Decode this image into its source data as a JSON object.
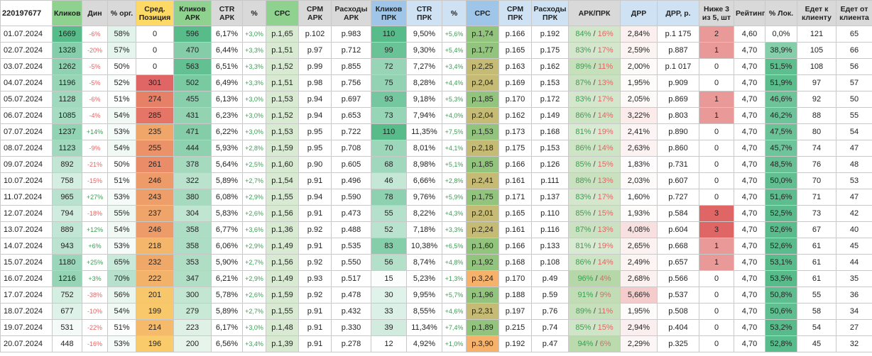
{
  "sheet_id": "220197677",
  "headers": [
    "Кликов",
    "Дин",
    "% орг.",
    "Сред. Позиция",
    "Кликов АРК",
    "CTR АРК",
    "%",
    "CPC",
    "CPM АРК",
    "Расходы АРК",
    "Кликов ПРК",
    "CTR ПРК",
    "%",
    "CPC",
    "CPM ПРК",
    "Расходы ПРК",
    "АРК/ПРК",
    "ДРР",
    "ДРР, р.",
    "Ниже 3 из 5, шт",
    "Рейтинг",
    "% Лок.",
    "Едет к клиенту",
    "Едет от клиента"
  ],
  "rows": [
    {
      "date": "01.07.2024",
      "clicks": "1669",
      "dyn": "-6%",
      "org": "58%",
      "pos": "0",
      "ark_clicks": "596",
      "ark_ctr": "6,17%",
      "ark_pct": "+3,0%",
      "ark_cpc": "р.1,65",
      "ark_cpm": "р.102",
      "ark_cost": "р.983",
      "prk_clicks": "110",
      "prk_ctr": "9,50%",
      "prk_pct": "+5,6%",
      "prk_cpc": "р.1,74",
      "prk_cpm": "р.166",
      "prk_cost": "р.192",
      "ark_share": "84%",
      "prk_share": "16%",
      "drr": "2,84%",
      "drr_r": "р.1 175",
      "low": "2",
      "rating": "4,60",
      "lok": "0,0%",
      "to_client": "121",
      "from_client": "65"
    },
    {
      "date": "02.07.2024",
      "clicks": "1328",
      "dyn": "-20%",
      "org": "57%",
      "pos": "0",
      "ark_clicks": "470",
      "ark_ctr": "6,44%",
      "ark_pct": "+3,3%",
      "ark_cpc": "р.1,51",
      "ark_cpm": "р.97",
      "ark_cost": "р.712",
      "prk_clicks": "99",
      "prk_ctr": "9,30%",
      "prk_pct": "+5,4%",
      "prk_cpc": "р.1,77",
      "prk_cpm": "р.165",
      "prk_cost": "р.175",
      "ark_share": "83%",
      "prk_share": "17%",
      "drr": "2,59%",
      "drr_r": "р.887",
      "low": "1",
      "rating": "4,70",
      "lok": "38,9%",
      "to_client": "105",
      "from_client": "66"
    },
    {
      "date": "03.07.2024",
      "clicks": "1262",
      "dyn": "-5%",
      "org": "50%",
      "pos": "0",
      "ark_clicks": "563",
      "ark_ctr": "6,51%",
      "ark_pct": "+3,3%",
      "ark_cpc": "р.1,52",
      "ark_cpm": "р.99",
      "ark_cost": "р.855",
      "prk_clicks": "72",
      "prk_ctr": "7,27%",
      "prk_pct": "+3,4%",
      "prk_cpc": "р.2,25",
      "prk_cpm": "р.163",
      "prk_cost": "р.162",
      "ark_share": "89%",
      "prk_share": "11%",
      "drr": "2,00%",
      "drr_r": "р.1 017",
      "low": "0",
      "rating": "4,70",
      "lok": "51,5%",
      "to_client": "108",
      "from_client": "56"
    },
    {
      "date": "04.07.2024",
      "clicks": "1196",
      "dyn": "-5%",
      "org": "52%",
      "pos": "301",
      "ark_clicks": "502",
      "ark_ctr": "6,49%",
      "ark_pct": "+3,3%",
      "ark_cpc": "р.1,51",
      "ark_cpm": "р.98",
      "ark_cost": "р.756",
      "prk_clicks": "75",
      "prk_ctr": "8,28%",
      "prk_pct": "+4,4%",
      "prk_cpc": "р.2,04",
      "prk_cpm": "р.169",
      "prk_cost": "р.153",
      "ark_share": "87%",
      "prk_share": "13%",
      "drr": "1,95%",
      "drr_r": "р.909",
      "low": "0",
      "rating": "4,70",
      "lok": "51,9%",
      "to_client": "97",
      "from_client": "57"
    },
    {
      "date": "05.07.2024",
      "clicks": "1128",
      "dyn": "-6%",
      "org": "51%",
      "pos": "274",
      "ark_clicks": "455",
      "ark_ctr": "6,13%",
      "ark_pct": "+3,0%",
      "ark_cpc": "р.1,53",
      "ark_cpm": "р.94",
      "ark_cost": "р.697",
      "prk_clicks": "93",
      "prk_ctr": "9,18%",
      "prk_pct": "+5,3%",
      "prk_cpc": "р.1,85",
      "prk_cpm": "р.170",
      "prk_cost": "р.172",
      "ark_share": "83%",
      "prk_share": "17%",
      "drr": "2,05%",
      "drr_r": "р.869",
      "low": "1",
      "rating": "4,70",
      "lok": "46,6%",
      "to_client": "92",
      "from_client": "50"
    },
    {
      "date": "06.07.2024",
      "clicks": "1085",
      "dyn": "-4%",
      "org": "54%",
      "pos": "285",
      "ark_clicks": "431",
      "ark_ctr": "6,23%",
      "ark_pct": "+3,0%",
      "ark_cpc": "р.1,52",
      "ark_cpm": "р.94",
      "ark_cost": "р.653",
      "prk_clicks": "73",
      "prk_ctr": "7,94%",
      "prk_pct": "+4,0%",
      "prk_cpc": "р.2,04",
      "prk_cpm": "р.162",
      "prk_cost": "р.149",
      "ark_share": "86%",
      "prk_share": "14%",
      "drr": "3,22%",
      "drr_r": "р.803",
      "low": "1",
      "rating": "4,70",
      "lok": "46,2%",
      "to_client": "88",
      "from_client": "55"
    },
    {
      "date": "07.07.2024",
      "clicks": "1237",
      "dyn": "+14%",
      "org": "53%",
      "pos": "235",
      "ark_clicks": "471",
      "ark_ctr": "6,22%",
      "ark_pct": "+3,0%",
      "ark_cpc": "р.1,53",
      "ark_cpm": "р.95",
      "ark_cost": "р.722",
      "prk_clicks": "110",
      "prk_ctr": "11,35%",
      "prk_pct": "+7,5%",
      "prk_cpc": "р.1,53",
      "prk_cpm": "р.173",
      "prk_cost": "р.168",
      "ark_share": "81%",
      "prk_share": "19%",
      "drr": "2,41%",
      "drr_r": "р.890",
      "low": "0",
      "rating": "4,70",
      "lok": "47,5%",
      "to_client": "80",
      "from_client": "54"
    },
    {
      "date": "08.07.2024",
      "clicks": "1123",
      "dyn": "-9%",
      "org": "54%",
      "pos": "255",
      "ark_clicks": "444",
      "ark_ctr": "5,93%",
      "ark_pct": "+2,8%",
      "ark_cpc": "р.1,59",
      "ark_cpm": "р.95",
      "ark_cost": "р.708",
      "prk_clicks": "70",
      "prk_ctr": "8,01%",
      "prk_pct": "+4,1%",
      "prk_cpc": "р.2,18",
      "prk_cpm": "р.175",
      "prk_cost": "р.153",
      "ark_share": "86%",
      "prk_share": "14%",
      "drr": "2,63%",
      "drr_r": "р.860",
      "low": "0",
      "rating": "4,70",
      "lok": "45,7%",
      "to_client": "74",
      "from_client": "47"
    },
    {
      "date": "09.07.2024",
      "clicks": "892",
      "dyn": "-21%",
      "org": "50%",
      "pos": "261",
      "ark_clicks": "378",
      "ark_ctr": "5,64%",
      "ark_pct": "+2,5%",
      "ark_cpc": "р.1,60",
      "ark_cpm": "р.90",
      "ark_cost": "р.605",
      "prk_clicks": "68",
      "prk_ctr": "8,98%",
      "prk_pct": "+5,1%",
      "prk_cpc": "р.1,85",
      "prk_cpm": "р.166",
      "prk_cost": "р.126",
      "ark_share": "85%",
      "prk_share": "15%",
      "drr": "1,83%",
      "drr_r": "р.731",
      "low": "0",
      "rating": "4,70",
      "lok": "48,5%",
      "to_client": "76",
      "from_client": "48"
    },
    {
      "date": "10.07.2024",
      "clicks": "758",
      "dyn": "-15%",
      "org": "51%",
      "pos": "246",
      "ark_clicks": "322",
      "ark_ctr": "5,89%",
      "ark_pct": "+2,7%",
      "ark_cpc": "р.1,54",
      "ark_cpm": "р.91",
      "ark_cost": "р.496",
      "prk_clicks": "46",
      "prk_ctr": "6,66%",
      "prk_pct": "+2,8%",
      "prk_cpc": "р.2,41",
      "prk_cpm": "р.161",
      "prk_cost": "р.111",
      "ark_share": "88%",
      "prk_share": "13%",
      "drr": "2,03%",
      "drr_r": "р.607",
      "low": "0",
      "rating": "4,70",
      "lok": "50,0%",
      "to_client": "70",
      "from_client": "53"
    },
    {
      "date": "11.07.2024",
      "clicks": "965",
      "dyn": "+27%",
      "org": "53%",
      "pos": "243",
      "ark_clicks": "380",
      "ark_ctr": "6,08%",
      "ark_pct": "+2,9%",
      "ark_cpc": "р.1,55",
      "ark_cpm": "р.94",
      "ark_cost": "р.590",
      "prk_clicks": "78",
      "prk_ctr": "9,76%",
      "prk_pct": "+5,9%",
      "prk_cpc": "р.1,75",
      "prk_cpm": "р.171",
      "prk_cost": "р.137",
      "ark_share": "83%",
      "prk_share": "17%",
      "drr": "1,60%",
      "drr_r": "р.727",
      "low": "0",
      "rating": "4,70",
      "lok": "51,6%",
      "to_client": "71",
      "from_client": "47"
    },
    {
      "date": "12.07.2024",
      "clicks": "794",
      "dyn": "-18%",
      "org": "55%",
      "pos": "237",
      "ark_clicks": "304",
      "ark_ctr": "5,83%",
      "ark_pct": "+2,6%",
      "ark_cpc": "р.1,56",
      "ark_cpm": "р.91",
      "ark_cost": "р.473",
      "prk_clicks": "55",
      "prk_ctr": "8,22%",
      "prk_pct": "+4,3%",
      "prk_cpc": "р.2,01",
      "prk_cpm": "р.165",
      "prk_cost": "р.110",
      "ark_share": "85%",
      "prk_share": "15%",
      "drr": "1,93%",
      "drr_r": "р.584",
      "low": "3",
      "rating": "4,70",
      "lok": "52,5%",
      "to_client": "73",
      "from_client": "42"
    },
    {
      "date": "13.07.2024",
      "clicks": "889",
      "dyn": "+12%",
      "org": "54%",
      "pos": "246",
      "ark_clicks": "358",
      "ark_ctr": "6,77%",
      "ark_pct": "+3,6%",
      "ark_cpc": "р.1,36",
      "ark_cpm": "р.92",
      "ark_cost": "р.488",
      "prk_clicks": "52",
      "prk_ctr": "7,18%",
      "prk_pct": "+3,3%",
      "prk_cpc": "р.2,24",
      "prk_cpm": "р.161",
      "prk_cost": "р.116",
      "ark_share": "87%",
      "prk_share": "13%",
      "drr": "4,08%",
      "drr_r": "р.604",
      "low": "3",
      "rating": "4,70",
      "lok": "52,6%",
      "to_client": "67",
      "from_client": "40"
    },
    {
      "date": "14.07.2024",
      "clicks": "943",
      "dyn": "+6%",
      "org": "53%",
      "pos": "218",
      "ark_clicks": "358",
      "ark_ctr": "6,06%",
      "ark_pct": "+2,9%",
      "ark_cpc": "р.1,49",
      "ark_cpm": "р.91",
      "ark_cost": "р.535",
      "prk_clicks": "83",
      "prk_ctr": "10,38%",
      "prk_pct": "+6,5%",
      "prk_cpc": "р.1,60",
      "prk_cpm": "р.166",
      "prk_cost": "р.133",
      "ark_share": "81%",
      "prk_share": "19%",
      "drr": "2,65%",
      "drr_r": "р.668",
      "low": "1",
      "rating": "4,70",
      "lok": "52,6%",
      "to_client": "61",
      "from_client": "45"
    },
    {
      "date": "15.07.2024",
      "clicks": "1180",
      "dyn": "+25%",
      "org": "65%",
      "pos": "232",
      "ark_clicks": "353",
      "ark_ctr": "5,90%",
      "ark_pct": "+2,7%",
      "ark_cpc": "р.1,56",
      "ark_cpm": "р.92",
      "ark_cost": "р.550",
      "prk_clicks": "56",
      "prk_ctr": "8,74%",
      "prk_pct": "+4,8%",
      "prk_cpc": "р.1,92",
      "prk_cpm": "р.168",
      "prk_cost": "р.108",
      "ark_share": "86%",
      "prk_share": "14%",
      "drr": "2,49%",
      "drr_r": "р.657",
      "low": "1",
      "rating": "4,70",
      "lok": "53,1%",
      "to_client": "61",
      "from_client": "44"
    },
    {
      "date": "16.07.2024",
      "clicks": "1216",
      "dyn": "+3%",
      "org": "70%",
      "pos": "222",
      "ark_clicks": "347",
      "ark_ctr": "6,21%",
      "ark_pct": "+2,9%",
      "ark_cpc": "р.1,49",
      "ark_cpm": "р.93",
      "ark_cost": "р.517",
      "prk_clicks": "15",
      "prk_ctr": "5,23%",
      "prk_pct": "+1,3%",
      "prk_cpc": "р.3,24",
      "prk_cpm": "р.170",
      "prk_cost": "р.49",
      "ark_share": "96%",
      "prk_share": "4%",
      "drr": "2,68%",
      "drr_r": "р.566",
      "low": "0",
      "rating": "4,70",
      "lok": "53,5%",
      "to_client": "61",
      "from_client": "35"
    },
    {
      "date": "17.07.2024",
      "clicks": "752",
      "dyn": "-38%",
      "org": "56%",
      "pos": "201",
      "ark_clicks": "300",
      "ark_ctr": "5,78%",
      "ark_pct": "+2,6%",
      "ark_cpc": "р.1,59",
      "ark_cpm": "р.92",
      "ark_cost": "р.478",
      "prk_clicks": "30",
      "prk_ctr": "9,95%",
      "prk_pct": "+5,7%",
      "prk_cpc": "р.1,96",
      "prk_cpm": "р.188",
      "prk_cost": "р.59",
      "ark_share": "91%",
      "prk_share": "9%",
      "drr": "5,66%",
      "drr_r": "р.537",
      "low": "0",
      "rating": "4,70",
      "lok": "50,8%",
      "to_client": "55",
      "from_client": "36"
    },
    {
      "date": "18.07.2024",
      "clicks": "677",
      "dyn": "-10%",
      "org": "54%",
      "pos": "199",
      "ark_clicks": "279",
      "ark_ctr": "5,89%",
      "ark_pct": "+2,7%",
      "ark_cpc": "р.1,55",
      "ark_cpm": "р.91",
      "ark_cost": "р.432",
      "prk_clicks": "33",
      "prk_ctr": "8,55%",
      "prk_pct": "+4,6%",
      "prk_cpc": "р.2,31",
      "prk_cpm": "р.197",
      "prk_cost": "р.76",
      "ark_share": "89%",
      "prk_share": "11%",
      "drr": "1,95%",
      "drr_r": "р.508",
      "low": "0",
      "rating": "4,70",
      "lok": "50,6%",
      "to_client": "58",
      "from_client": "34"
    },
    {
      "date": "19.07.2024",
      "clicks": "531",
      "dyn": "-22%",
      "org": "51%",
      "pos": "214",
      "ark_clicks": "223",
      "ark_ctr": "6,17%",
      "ark_pct": "+3,0%",
      "ark_cpc": "р.1,48",
      "ark_cpm": "р.91",
      "ark_cost": "р.330",
      "prk_clicks": "39",
      "prk_ctr": "11,34%",
      "prk_pct": "+7,4%",
      "prk_cpc": "р.1,89",
      "prk_cpm": "р.215",
      "prk_cost": "р.74",
      "ark_share": "85%",
      "prk_share": "15%",
      "drr": "2,94%",
      "drr_r": "р.404",
      "low": "0",
      "rating": "4,70",
      "lok": "53,2%",
      "to_client": "54",
      "from_client": "27"
    },
    {
      "date": "20.07.2024",
      "clicks": "448",
      "dyn": "-16%",
      "org": "53%",
      "pos": "196",
      "ark_clicks": "200",
      "ark_ctr": "6,56%",
      "ark_pct": "+3,4%",
      "ark_cpc": "р.1,39",
      "ark_cpm": "р.91",
      "ark_cost": "р.278",
      "prk_clicks": "12",
      "prk_ctr": "4,92%",
      "prk_pct": "+1,0%",
      "prk_cpc": "р.3,90",
      "prk_cpm": "р.192",
      "prk_cost": "р.47",
      "ark_share": "94%",
      "prk_share": "6%",
      "drr": "2,29%",
      "drr_r": "р.325",
      "low": "0",
      "rating": "4,70",
      "lok": "52,8%",
      "to_client": "45",
      "from_client": "32"
    }
  ],
  "colors": {
    "header_gray": "#d9d9d9",
    "header_yellow": "#ffd966",
    "header_green": "#8fd18f",
    "header_blue": "#9fc5e8",
    "negative": "#e06666",
    "positive": "#38a052"
  }
}
